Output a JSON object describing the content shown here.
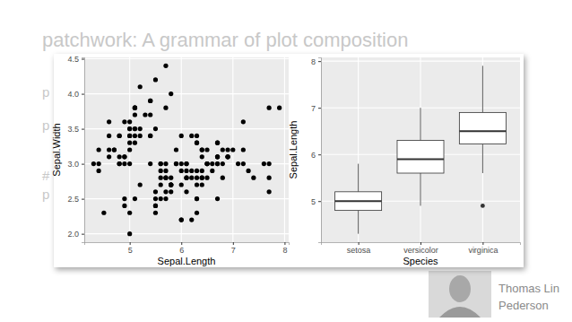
{
  "slide": {
    "title": "patchwork: A grammar of plot composition",
    "fragments": [
      "p",
      "p",
      "#",
      "p"
    ],
    "author": [
      "Thomas Lin",
      "Pederson"
    ]
  },
  "chart_data": [
    {
      "type": "scatter",
      "x_label": "Sepal.Length",
      "y_label": "Sepal.Width",
      "color": "#000000",
      "marker": "circle",
      "grid": true,
      "xlim": [
        4.12,
        8.08
      ],
      "xticks": [
        5,
        6,
        7,
        8
      ],
      "ylim": [
        1.88,
        4.52
      ],
      "yticks": [
        {
          "value": 2,
          "label": "2.0"
        },
        {
          "value": 2.5,
          "label": "2.5"
        },
        {
          "value": 3,
          "label": "3.0"
        },
        {
          "value": 3.5,
          "label": "3.5"
        },
        {
          "value": 4,
          "label": "4.0"
        },
        {
          "value": 4.5,
          "label": "4.5"
        }
      ],
      "x": [
        5.1,
        4.9,
        4.7,
        4.6,
        5.0,
        5.4,
        4.6,
        5.0,
        4.4,
        4.9,
        5.4,
        4.8,
        4.8,
        4.3,
        5.8,
        5.7,
        5.4,
        5.1,
        5.7,
        5.1,
        5.4,
        5.1,
        4.6,
        5.1,
        4.8,
        5.0,
        5.0,
        5.2,
        5.2,
        4.7,
        4.8,
        5.4,
        5.2,
        5.5,
        4.9,
        5.0,
        5.5,
        4.9,
        4.4,
        5.1,
        5.0,
        4.5,
        4.4,
        5.0,
        5.1,
        4.8,
        5.1,
        4.6,
        5.3,
        5.0,
        7.0,
        6.4,
        6.9,
        5.5,
        6.5,
        5.7,
        6.3,
        4.9,
        6.6,
        5.2,
        5.0,
        5.9,
        6.0,
        6.1,
        5.6,
        6.7,
        5.6,
        5.8,
        6.2,
        5.6,
        5.9,
        6.1,
        6.3,
        6.1,
        6.4,
        6.6,
        6.8,
        6.7,
        6.0,
        5.7,
        5.5,
        5.5,
        5.8,
        6.0,
        5.4,
        6.0,
        6.7,
        6.3,
        5.6,
        5.5,
        5.5,
        6.1,
        5.8,
        5.0,
        5.6,
        5.7,
        5.7,
        6.2,
        5.1,
        5.7,
        6.3,
        5.8,
        7.1,
        6.3,
        6.5,
        7.6,
        4.9,
        7.3,
        6.7,
        7.2,
        6.5,
        6.4,
        6.8,
        5.7,
        5.8,
        6.4,
        6.5,
        7.7,
        7.7,
        6.0,
        6.9,
        5.6,
        7.7,
        6.3,
        6.7,
        7.2,
        6.2,
        6.1,
        6.4,
        7.2,
        7.4,
        7.9,
        6.4,
        6.3,
        6.1,
        7.7,
        6.3,
        6.4,
        6.0,
        6.9,
        6.7,
        6.9,
        5.8,
        6.8,
        6.7,
        6.7,
        6.3,
        6.5,
        6.2,
        5.9
      ],
      "values": [
        3.5,
        3.0,
        3.2,
        3.1,
        3.6,
        3.9,
        3.4,
        3.4,
        2.9,
        3.1,
        3.7,
        3.4,
        3.0,
        3.0,
        4.0,
        4.4,
        3.9,
        3.5,
        3.8,
        3.8,
        3.4,
        3.7,
        3.6,
        3.3,
        3.4,
        3.0,
        3.4,
        3.5,
        3.4,
        3.2,
        3.1,
        3.4,
        4.1,
        4.2,
        3.1,
        3.2,
        3.5,
        3.6,
        3.0,
        3.4,
        3.5,
        2.3,
        3.2,
        3.5,
        3.8,
        3.0,
        3.8,
        3.2,
        3.7,
        3.3,
        3.2,
        3.2,
        3.1,
        2.3,
        2.8,
        2.8,
        3.3,
        2.4,
        2.9,
        2.7,
        2.0,
        3.0,
        2.2,
        2.9,
        2.9,
        3.1,
        3.0,
        2.7,
        2.2,
        2.5,
        3.2,
        2.8,
        2.5,
        2.8,
        2.9,
        3.0,
        2.8,
        3.0,
        2.9,
        2.6,
        2.4,
        2.4,
        2.7,
        2.7,
        3.0,
        3.4,
        3.1,
        2.3,
        3.0,
        2.5,
        2.6,
        3.0,
        2.6,
        2.3,
        2.7,
        3.0,
        2.9,
        2.9,
        2.5,
        2.8,
        3.3,
        2.7,
        3.0,
        2.9,
        3.0,
        3.0,
        2.5,
        2.9,
        2.5,
        3.6,
        3.2,
        2.7,
        3.0,
        2.5,
        2.8,
        3.2,
        3.0,
        3.8,
        2.6,
        2.2,
        3.2,
        2.8,
        2.8,
        2.7,
        3.3,
        3.2,
        2.8,
        3.0,
        2.8,
        3.0,
        2.8,
        3.8,
        2.8,
        2.8,
        2.6,
        3.0,
        3.4,
        3.1,
        3.0,
        3.1,
        3.1,
        3.1,
        2.7,
        3.2,
        3.3,
        3.0,
        2.5,
        3.0,
        3.4,
        3.0
      ]
    },
    {
      "type": "box",
      "x_label": "Species",
      "y_label": "Sepal.Length",
      "color": "#333333",
      "grid": true,
      "categories": [
        "setosa",
        "versicolor",
        "virginica"
      ],
      "ylim": [
        4.12,
        8.08
      ],
      "yticks": [
        5,
        6,
        7,
        8
      ],
      "low": [
        4.3,
        4.9,
        5.6
      ],
      "q1": [
        4.8,
        5.6,
        6.225
      ],
      "median": [
        5.0,
        5.9,
        6.5
      ],
      "q3": [
        5.2,
        6.3,
        6.9
      ],
      "high": [
        5.8,
        7.0,
        7.9
      ],
      "outliers": [
        [],
        [],
        [
          4.9
        ]
      ]
    }
  ]
}
